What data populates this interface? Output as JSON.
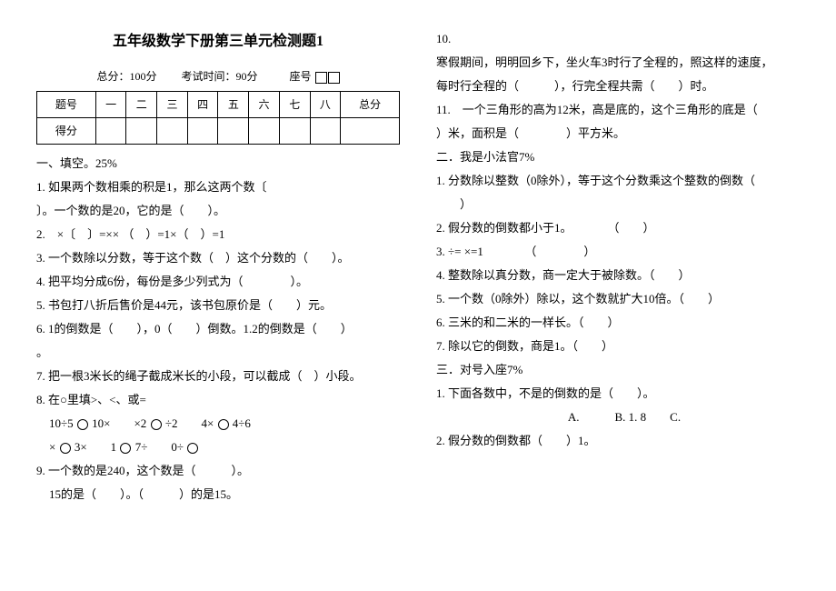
{
  "header": {
    "title": "五年级数学下册第三单元检测题1",
    "total_score": "总分：100分",
    "exam_time": "考试时间：90分",
    "seat_label": "座号"
  },
  "score_table": {
    "row1": [
      "题号",
      "一",
      "二",
      "三",
      "四",
      "五",
      "六",
      "七",
      "八",
      "总分"
    ],
    "row2_label": "得分"
  },
  "left": {
    "sec1_title": "一、填空。25%",
    "q1": "1. 如果两个数相乘的积是1，那么这两个数〔",
    "q1b": "〕。一个数的是20，它的是（　　）。",
    "q2": "2.　×〔　〕=×× （　）=1×（　）=1",
    "q3": "3. 一个数除以分数，等于这个数（　）这个分数的（　　）。",
    "q4": "4. 把平均分成6份，每份是多少列式为（　　　　）。",
    "q5": "5. 书包打八折后售价是44元，该书包原价是（　　）元。",
    "q6": "6. 1的倒数是（　　），0（　　）倒数。1.2的倒数是（　　）",
    "q6b": "。",
    "q7": "7. 把一根3米长的绳子截成米长的小段，可以截成（　）小段。",
    "q8": "8. 在○里填>、<、或=",
    "q8a": "10÷5 ○ 10×　　×2 ○ ÷2　　4× ○ 4÷6",
    "q8b": "×○3×　　1○7÷　　0÷○",
    "q9": "9. 一个数的是240，这个数是（　　　）。",
    "q9b": "15的是（　　）。（　　　）的是15。"
  },
  "right": {
    "q10": "10.",
    "q10a": "寒假期间，明明回乡下，坐火车3时行了全程的，照这样的速度，",
    "q10b": "每时行全程的（　　　），行完全程共需（　　）时。",
    "q11": "11.　一个三角形的高为12米，高是底的，这个三角形的底是（",
    "q11b": "）米，面积是（　　　　）平方米。",
    "sec2_title": "二．我是小法官7%",
    "p1": "1. 分数除以整数（0除外），等于这个分数乘这个整数的倒数（",
    "p1b": "　　）",
    "p2": "2. 假分数的倒数都小于1。　　　　（　　）",
    "p3": "3. ÷= ×=1　　　　（　　　　）",
    "p4": "4. 整数除以真分数，商一定大于被除数。（　　）",
    "p5": "5. 一个数（0除外）除以，这个数就扩大10倍。（　　）",
    "p6": "6. 三米的和二米的一样长。（　　）",
    "p7": "7. 除以它的倒数，商是1。（　　）",
    "sec3_title": "三．对号入座7%",
    "c1": "1. 下面各数中，不是的倒数的是（　　）。",
    "c1opts": "A.　　　B. 1. 8　　C.",
    "c2": "2. 假分数的倒数都（　　）1。"
  }
}
